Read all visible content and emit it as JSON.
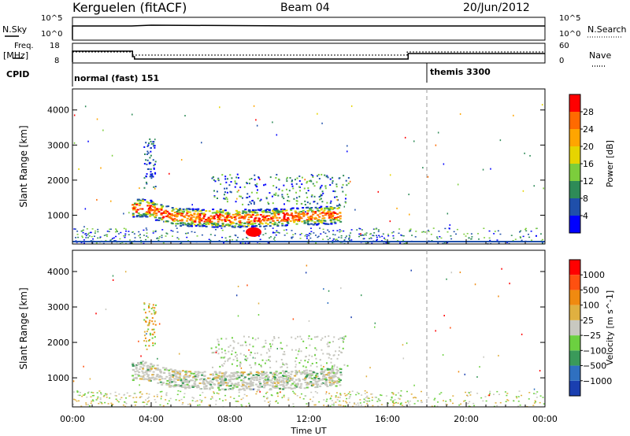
{
  "header": {
    "station": "Kerguelen (fitACF)",
    "beam": "Beam 04",
    "date": "20/Jun/2012"
  },
  "panels": {
    "nsky_label": "N.Sky",
    "nsearch_label": "N.Search",
    "freq_label_1": "Freq.",
    "freq_label_2": "[MHz]",
    "nave_label": "Nave",
    "cpid_label": "CPID",
    "nsky_ticks": [
      "10^5",
      "10^0"
    ],
    "nsearch_ticks": [
      "10^5",
      "10^0"
    ],
    "freq_ticks": [
      "18",
      "8"
    ],
    "nave_ticks": [
      "60",
      "0"
    ],
    "cpid_modes": [
      {
        "label": "normal (fast) 151",
        "start_hour": 0
      },
      {
        "label": "themis 3300",
        "start_hour": 18
      }
    ]
  },
  "chart_data": [
    {
      "type": "heatmap",
      "name": "power",
      "ylabel": "Slant Range [km]",
      "xlabel": "",
      "xlim": [
        0,
        24
      ],
      "ylim": [
        180,
        4600
      ],
      "yticks": [
        1000,
        2000,
        3000,
        4000
      ],
      "colorbar": {
        "label": "Power [dB]",
        "ticks": [
          "28",
          "24",
          "20",
          "16",
          "12",
          "8",
          "4"
        ],
        "colors": [
          "#0000ff",
          "#1f4faa",
          "#2e8b57",
          "#7ccd3c",
          "#e6d400",
          "#ffa500",
          "#ff6a00",
          "#ff0000"
        ]
      }
    },
    {
      "type": "heatmap",
      "name": "velocity",
      "ylabel": "Slant Range [km]",
      "xlabel": "Time UT",
      "xlim": [
        0,
        24
      ],
      "ylim": [
        180,
        4600
      ],
      "yticks": [
        1000,
        2000,
        3000,
        4000
      ],
      "xticks": [
        "00:00",
        "04:00",
        "08:00",
        "12:00",
        "16:00",
        "20:00",
        "00:00"
      ],
      "colorbar": {
        "label": "Velocity [m s^-1]",
        "ticks": [
          "1000",
          "500",
          "100",
          "25",
          "−25",
          "−100",
          "−500",
          "−1000"
        ],
        "colors": [
          "#1a3fb0",
          "#2f70c0",
          "#3a9a5a",
          "#6cd040",
          "#c8c8c0",
          "#e0b040",
          "#f08a10",
          "#ff5010",
          "#ff0000"
        ]
      }
    }
  ]
}
